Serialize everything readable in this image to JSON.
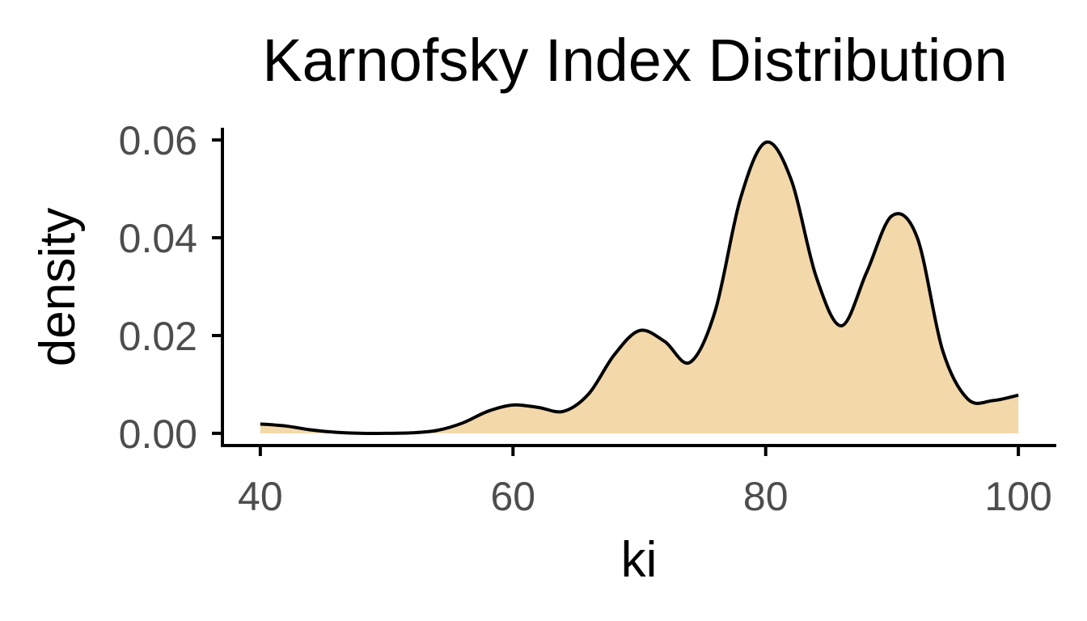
{
  "colors": {
    "fill": "#f3d8aa",
    "line": "#000000",
    "axis": "#000000",
    "tick_text": "#4d4d4d",
    "background": "#ffffff"
  },
  "chart_data": {
    "type": "area",
    "title": "Karnofsky Index Distribution",
    "xlabel": "ki",
    "ylabel": "density",
    "xlim": [
      37,
      103
    ],
    "ylim": [
      -0.0025,
      0.0625
    ],
    "x_ticks": [
      40,
      60,
      80,
      100
    ],
    "x_tick_labels": [
      "40",
      "60",
      "80",
      "100"
    ],
    "y_ticks": [
      0,
      0.02,
      0.04,
      0.06
    ],
    "y_tick_labels": [
      "0.00",
      "0.02",
      "0.04",
      "0.06"
    ],
    "grid": false,
    "legend": "none",
    "series": [
      {
        "x": [
          40,
          42,
          44,
          46,
          48,
          50,
          52,
          54,
          56,
          58,
          60,
          62,
          64,
          66,
          68,
          70,
          72,
          74,
          76,
          78,
          80,
          82,
          84,
          86,
          88,
          90,
          92,
          94,
          96,
          98,
          100
        ],
        "y": [
          0.0019,
          0.0015,
          0.0007,
          0.0002,
          0.0,
          0.0,
          0.0001,
          0.0006,
          0.0021,
          0.0045,
          0.0058,
          0.0053,
          0.0045,
          0.0081,
          0.016,
          0.021,
          0.0188,
          0.0145,
          0.025,
          0.048,
          0.0595,
          0.052,
          0.032,
          0.022,
          0.033,
          0.0445,
          0.04,
          0.017,
          0.007,
          0.0067,
          0.0078
        ]
      }
    ]
  }
}
